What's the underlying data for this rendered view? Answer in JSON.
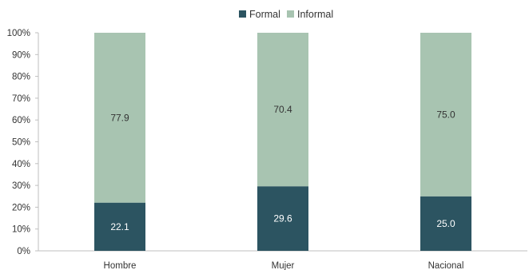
{
  "chart_data": {
    "type": "bar",
    "stacked": true,
    "categories": [
      "Hombre",
      "Mujer",
      "Nacional"
    ],
    "series": [
      {
        "name": "Formal",
        "values": [
          22.1,
          29.6,
          25.0
        ],
        "color": "#2c5461",
        "label_color": "#ffffff"
      },
      {
        "name": "Informal",
        "values": [
          77.9,
          70.4,
          75.0
        ],
        "color": "#a8c4b1",
        "label_color": "#333333"
      }
    ],
    "data_labels": [
      [
        "22.1",
        "29.6",
        "25.0"
      ],
      [
        "77.9",
        "70.4",
        "75.0"
      ]
    ],
    "ylim": [
      0,
      100
    ],
    "y_ticks": [
      "0%",
      "10%",
      "20%",
      "30%",
      "40%",
      "50%",
      "60%",
      "70%",
      "80%",
      "90%",
      "100%"
    ],
    "grid": false,
    "legend_position": "top-center",
    "title": "",
    "xlabel": "",
    "ylabel": ""
  }
}
